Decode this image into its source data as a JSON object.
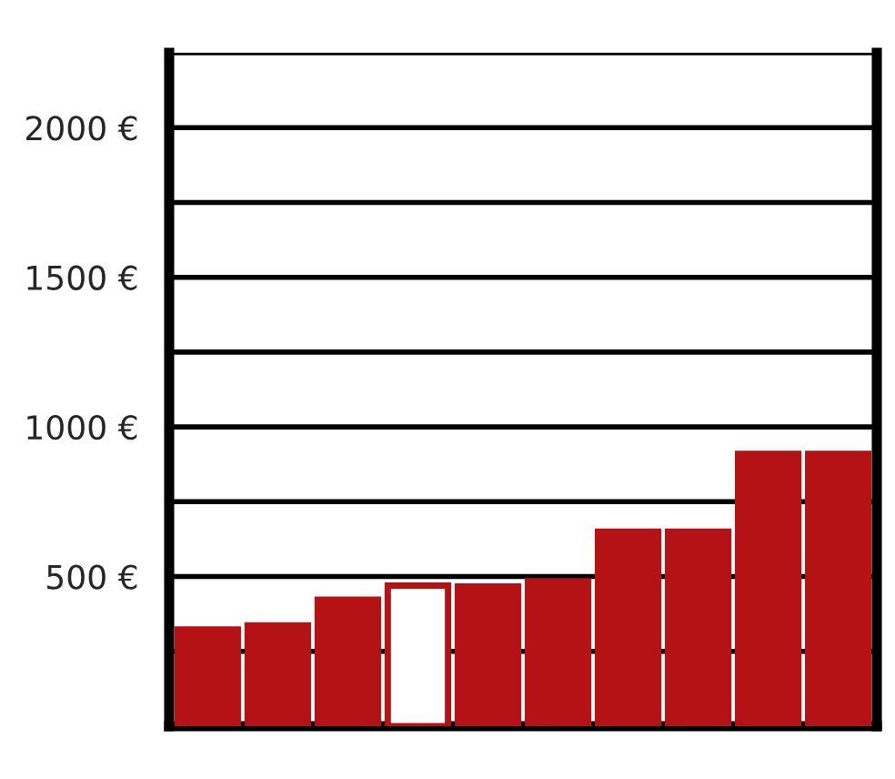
{
  "chart_data": {
    "type": "bar",
    "categories": [
      null,
      null,
      null,
      null,
      null,
      null,
      null,
      null,
      null,
      null
    ],
    "values": [
      323,
      337,
      423,
      470,
      467,
      484,
      650,
      650,
      910,
      910
    ],
    "color": "#b41214",
    "colors": [
      "#b41214",
      "#b41214",
      "#b41214",
      "#ffffff",
      "#b41214",
      "#b41214",
      "#b41214",
      "#b41214",
      "#b41214",
      "#b41214"
    ],
    "ylim": [
      0,
      2250
    ],
    "yticks": [
      {
        "value": 250,
        "label": null
      },
      {
        "value": 500,
        "label": "500 €"
      },
      {
        "value": 750,
        "label": null
      },
      {
        "value": 1000,
        "label": "1000 €"
      },
      {
        "value": 1250,
        "label": null
      },
      {
        "value": 1500,
        "label": "1500 €"
      },
      {
        "value": 1750,
        "label": null
      },
      {
        "value": 2000,
        "label": "2000 €"
      },
      {
        "value": 2250,
        "label": null
      }
    ],
    "grid": "y",
    "tick_labels": "y"
  }
}
